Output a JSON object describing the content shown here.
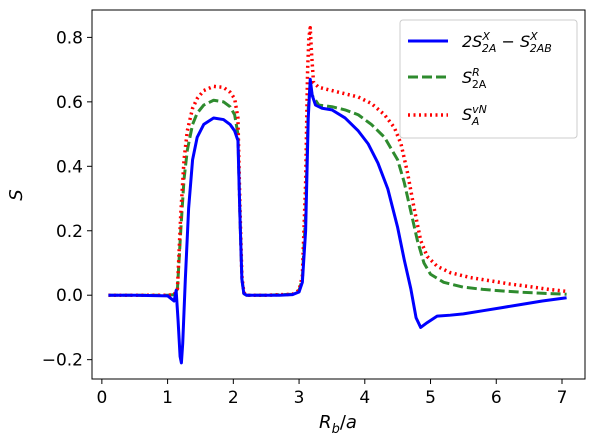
{
  "chart_data": {
    "type": "line",
    "xlabel": "R_b/a",
    "ylabel": "S",
    "xlim": [
      -0.15,
      7.35
    ],
    "ylim": [
      -0.26,
      0.885
    ],
    "xticks": [
      0,
      1,
      2,
      3,
      4,
      5,
      6,
      7
    ],
    "yticks": [
      -0.2,
      0.0,
      0.2,
      0.4,
      0.6,
      0.8
    ],
    "xtick_labels": [
      "0",
      "1",
      "2",
      "3",
      "4",
      "5",
      "6",
      "7"
    ],
    "ytick_labels": [
      "−0.2",
      "0.0",
      "0.2",
      "0.4",
      "0.6",
      "0.8"
    ],
    "legend_position": "upper right",
    "grid": false,
    "series": [
      {
        "name": "2S^X_2A − S^X_2AB",
        "color": "#0000ff",
        "style": "solid",
        "x": [
          0.1,
          0.5,
          1.0,
          1.05,
          1.1,
          1.13,
          1.16,
          1.19,
          1.21,
          1.23,
          1.27,
          1.32,
          1.38,
          1.45,
          1.55,
          1.7,
          1.85,
          1.95,
          2.02,
          2.07,
          2.1,
          2.13,
          2.16,
          2.2,
          2.4,
          2.7,
          2.9,
          3.0,
          3.05,
          3.1,
          3.14,
          3.17,
          3.2,
          3.25,
          3.35,
          3.5,
          3.7,
          3.9,
          4.05,
          4.2,
          4.35,
          4.5,
          4.6,
          4.7,
          4.78,
          4.85,
          4.95,
          5.1,
          5.3,
          5.5,
          5.8,
          6.1,
          6.4,
          6.7,
          7.07
        ],
        "y": [
          0.0,
          0.0,
          -0.002,
          -0.01,
          -0.018,
          0.015,
          -0.08,
          -0.19,
          -0.21,
          -0.15,
          0.05,
          0.27,
          0.42,
          0.49,
          0.53,
          0.55,
          0.545,
          0.53,
          0.51,
          0.48,
          0.25,
          0.05,
          0.005,
          0.0,
          0.0,
          0.0,
          0.002,
          0.01,
          0.04,
          0.2,
          0.55,
          0.67,
          0.62,
          0.59,
          0.58,
          0.575,
          0.55,
          0.51,
          0.47,
          0.41,
          0.33,
          0.21,
          0.11,
          0.02,
          -0.07,
          -0.1,
          -0.085,
          -0.065,
          -0.062,
          -0.058,
          -0.048,
          -0.038,
          -0.028,
          -0.018,
          -0.008
        ]
      },
      {
        "name": "S^R_2A",
        "color": "#2e8b2e",
        "style": "dashed",
        "x": [
          0.1,
          0.5,
          1.0,
          1.1,
          1.15,
          1.2,
          1.25,
          1.3,
          1.38,
          1.45,
          1.55,
          1.7,
          1.85,
          1.95,
          2.02,
          2.07,
          2.1,
          2.13,
          2.16,
          2.2,
          2.5,
          2.9,
          3.0,
          3.05,
          3.1,
          3.14,
          3.17,
          3.2,
          3.3,
          3.5,
          3.7,
          3.9,
          4.1,
          4.3,
          4.5,
          4.6,
          4.7,
          4.8,
          4.9,
          5.0,
          5.2,
          5.5,
          5.8,
          6.1,
          6.4,
          6.7,
          7.07
        ],
        "y": [
          0.0,
          0.0,
          0.0,
          0.002,
          0.02,
          0.2,
          0.36,
          0.45,
          0.53,
          0.565,
          0.59,
          0.605,
          0.6,
          0.585,
          0.56,
          0.5,
          0.25,
          0.05,
          0.005,
          0.0,
          0.0,
          0.003,
          0.015,
          0.05,
          0.25,
          0.58,
          0.65,
          0.62,
          0.59,
          0.585,
          0.575,
          0.56,
          0.53,
          0.49,
          0.42,
          0.35,
          0.26,
          0.17,
          0.1,
          0.065,
          0.04,
          0.025,
          0.018,
          0.013,
          0.009,
          0.006,
          0.003
        ]
      },
      {
        "name": "S^vN_A",
        "color": "#ff0000",
        "style": "dotted",
        "x": [
          0.1,
          0.5,
          1.0,
          1.1,
          1.15,
          1.2,
          1.25,
          1.3,
          1.38,
          1.45,
          1.55,
          1.7,
          1.85,
          1.95,
          2.02,
          2.07,
          2.1,
          2.13,
          2.16,
          2.2,
          2.5,
          2.9,
          3.0,
          3.05,
          3.1,
          3.13,
          3.15,
          3.17,
          3.19,
          3.22,
          3.3,
          3.5,
          3.7,
          3.9,
          4.1,
          4.3,
          4.45,
          4.55,
          4.65,
          4.75,
          4.85,
          4.95,
          5.1,
          5.3,
          5.6,
          5.9,
          6.2,
          6.5,
          6.8,
          7.07
        ],
        "y": [
          0.0,
          0.0,
          0.0,
          0.002,
          0.02,
          0.25,
          0.42,
          0.51,
          0.58,
          0.61,
          0.635,
          0.648,
          0.645,
          0.63,
          0.61,
          0.55,
          0.28,
          0.06,
          0.008,
          0.0,
          0.0,
          0.003,
          0.015,
          0.06,
          0.35,
          0.7,
          0.8,
          0.83,
          0.75,
          0.66,
          0.645,
          0.635,
          0.625,
          0.615,
          0.595,
          0.56,
          0.52,
          0.47,
          0.38,
          0.27,
          0.17,
          0.12,
          0.09,
          0.07,
          0.055,
          0.045,
          0.035,
          0.027,
          0.018,
          0.012
        ]
      }
    ],
    "legend": [
      {
        "base": "2S",
        "sup": "X",
        "sub": "2A",
        "mid": " − S",
        "sup2": "X",
        "sub2": "2AB"
      },
      {
        "base": "S",
        "sup": "R",
        "sub": "2A"
      },
      {
        "base": "S",
        "sup": "vN",
        "sub": "A"
      }
    ]
  }
}
